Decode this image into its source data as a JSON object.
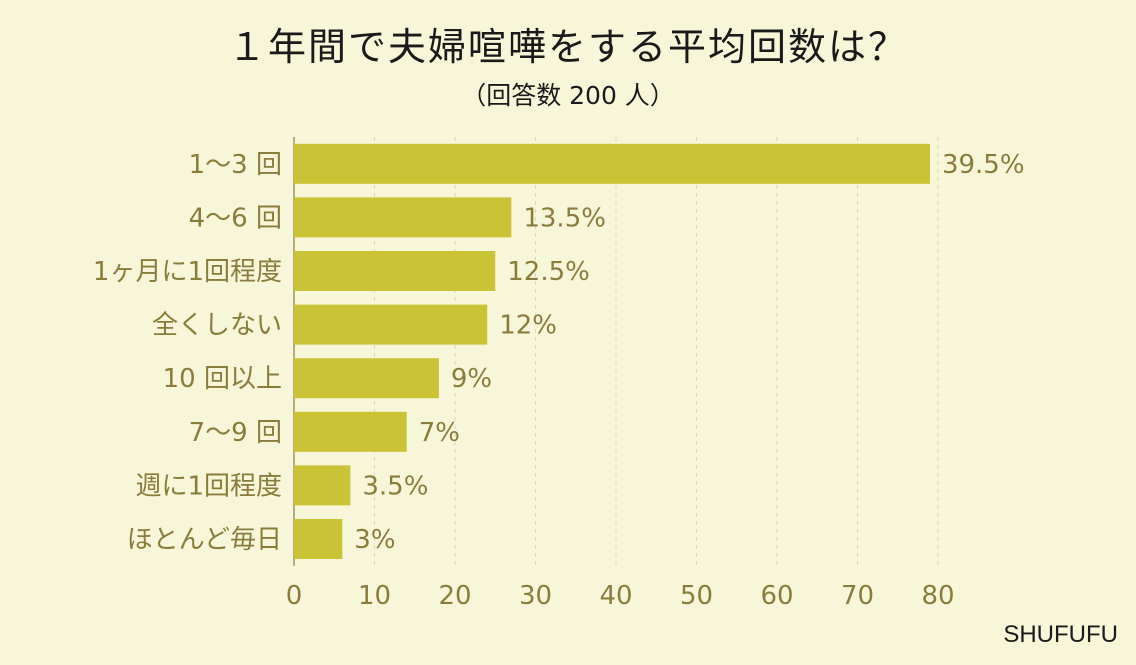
{
  "chart_data": {
    "type": "bar",
    "orientation": "horizontal",
    "title": "１年間で夫婦喧嘩をする平均回数は？",
    "subtitle": "（回答数 200 人）",
    "categories": [
      "1〜3 回",
      "4〜6 回",
      "1ヶ月に1回程度",
      "全くしない",
      "10 回以上",
      "7〜9 回",
      "週に1回程度",
      "ほとんど毎日"
    ],
    "values": [
      39.5,
      13.5,
      12.5,
      12,
      9,
      7,
      3.5,
      3
    ],
    "value_labels": [
      "39.5%",
      "13.5%",
      "12.5%",
      "12%",
      "9%",
      "7%",
      "3.5%",
      "3%"
    ],
    "x_scale_factor": 2,
    "xlim": [
      0,
      80
    ],
    "xticks": [
      0,
      10,
      20,
      30,
      40,
      50,
      60,
      70,
      80
    ],
    "grid": "vertical dashed",
    "colors": {
      "bar": "#c9c335",
      "text": "#8a7d3c",
      "background": "#f7f6d8"
    }
  },
  "brand": "SHUFUFU"
}
